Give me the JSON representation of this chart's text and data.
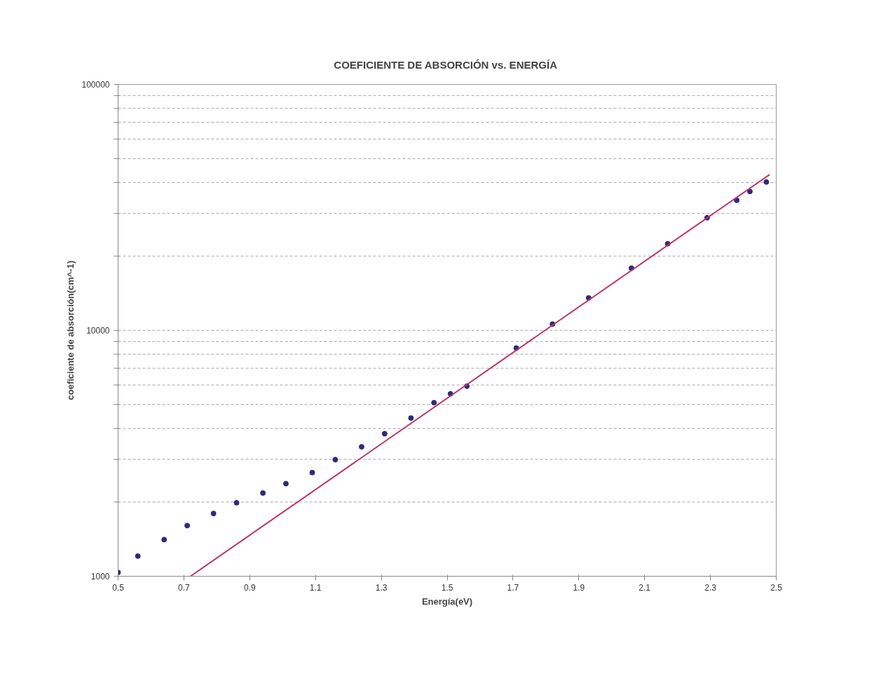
{
  "chart_data": {
    "type": "scatter",
    "title": "COEFICIENTE DE ABSORCIÓN  vs. ENERGÍA",
    "xlabel": "Energía(eV)",
    "ylabel": "coeficiente de absorción(cm^-1)",
    "xlim": [
      0.5,
      2.5
    ],
    "ylim": [
      1000,
      100000
    ],
    "log": "y",
    "grid": "y",
    "marker": "circle",
    "xticks": [
      0.5,
      0.7,
      0.9,
      1.1,
      1.3,
      1.5,
      1.7,
      1.9,
      2.1,
      2.3,
      2.5
    ],
    "yticks": [
      1000,
      {
        "value": 2000,
        "label": null
      },
      {
        "value": 3000,
        "label": null
      },
      {
        "value": 4000,
        "label": null
      },
      {
        "value": 5000,
        "label": null
      },
      {
        "value": 6000,
        "label": null
      },
      {
        "value": 7000,
        "label": null
      },
      {
        "value": 8000,
        "label": null
      },
      {
        "value": 9000,
        "label": null
      },
      10000,
      {
        "value": 20000,
        "label": null
      },
      {
        "value": 30000,
        "label": null
      },
      {
        "value": 40000,
        "label": null
      },
      {
        "value": 50000,
        "label": null
      },
      {
        "value": 60000,
        "label": null
      },
      {
        "value": 70000,
        "label": null
      },
      {
        "value": 80000,
        "label": null
      },
      {
        "value": 90000,
        "label": null
      },
      100000
    ],
    "series": [
      {
        "color": "#2e2a7a",
        "x": [
          0.5,
          0.56,
          0.64,
          0.71,
          0.79,
          0.86,
          0.94,
          1.01,
          1.09,
          1.16,
          1.24,
          1.31,
          1.39,
          1.46,
          1.51,
          1.56,
          1.71,
          1.82,
          1.93,
          2.06,
          2.17,
          2.29,
          2.38,
          2.42,
          2.47
        ],
        "values": [
          1036,
          1208,
          1409,
          1607,
          1800,
          1990,
          2180,
          2380,
          2640,
          2980,
          3360,
          3800,
          4400,
          5080,
          5520,
          5930,
          8470,
          10600,
          13550,
          17900,
          22500,
          28700,
          33800,
          36700,
          40100
        ]
      },
      {
        "type": "line",
        "color": "#c0306a",
        "line_style": "solid",
        "marker": "none",
        "x": [
          0.72,
          2.48
        ],
        "values": [
          1000,
          43000
        ]
      }
    ]
  }
}
